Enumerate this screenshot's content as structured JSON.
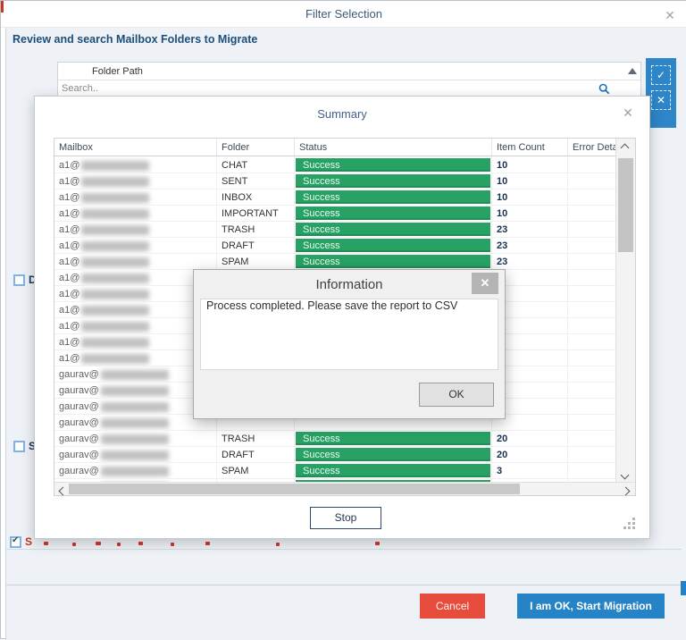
{
  "window": {
    "title": "Filter Selection",
    "close_glyph": "✕"
  },
  "filter": {
    "heading": "Review and search Mailbox Folders to Migrate",
    "folder_table": {
      "header": "Folder Path",
      "search_placeholder": "Search.."
    },
    "side_buttons": {
      "check_all_glyph": "✓",
      "uncheck_all_glyph": "✕"
    },
    "checkboxes": [
      {
        "label": "D",
        "checked": false
      },
      {
        "label": "S",
        "checked": false
      },
      {
        "label": "S",
        "checked": true,
        "label_color": "#c13525"
      }
    ],
    "footer": {
      "cancel_label": "Cancel",
      "migrate_label": "I am OK, Start Migration"
    }
  },
  "summary": {
    "title": "Summary",
    "close_glyph": "✕",
    "stop_label": "Stop",
    "columns": [
      "Mailbox",
      "Folder",
      "Status",
      "Item Count",
      "Error Detail"
    ],
    "rows": [
      {
        "mailbox": "a1@",
        "blurred": true,
        "folder": "CHAT",
        "status": "Success",
        "count": "10"
      },
      {
        "mailbox": "a1@",
        "blurred": true,
        "folder": "SENT",
        "status": "Success",
        "count": "10"
      },
      {
        "mailbox": "a1@",
        "blurred": true,
        "folder": "INBOX",
        "status": "Success",
        "count": "10"
      },
      {
        "mailbox": "a1@",
        "blurred": true,
        "folder": "IMPORTANT",
        "status": "Success",
        "count": "10"
      },
      {
        "mailbox": "a1@",
        "blurred": true,
        "folder": "TRASH",
        "status": "Success",
        "count": "23"
      },
      {
        "mailbox": "a1@",
        "blurred": true,
        "folder": "DRAFT",
        "status": "Success",
        "count": "23"
      },
      {
        "mailbox": "a1@",
        "blurred": true,
        "folder": "SPAM",
        "status": "Success",
        "count": "23"
      },
      {
        "mailbox": "a1@",
        "blurred": true,
        "folder": "",
        "status": "",
        "count": ""
      },
      {
        "mailbox": "a1@",
        "blurred": true,
        "folder": "",
        "status": "",
        "count": ""
      },
      {
        "mailbox": "a1@",
        "blurred": true,
        "folder": "",
        "status": "",
        "count": ""
      },
      {
        "mailbox": "a1@",
        "blurred": true,
        "folder": "",
        "status": "",
        "count": ""
      },
      {
        "mailbox": "a1@",
        "blurred": true,
        "folder": "",
        "status": "",
        "count": ""
      },
      {
        "mailbox": "a1@",
        "blurred": true,
        "folder": "",
        "status": "",
        "count": ""
      },
      {
        "mailbox": "gaurav@",
        "blurred": true,
        "folder": "",
        "status": "",
        "count": ""
      },
      {
        "mailbox": "gaurav@",
        "blurred": true,
        "folder": "",
        "status": "",
        "count": ""
      },
      {
        "mailbox": "gaurav@",
        "blurred": true,
        "folder": "",
        "status": "",
        "count": ""
      },
      {
        "mailbox": "gaurav@",
        "blurred": true,
        "folder": "",
        "status": "",
        "count": ""
      },
      {
        "mailbox": "gaurav@",
        "blurred": true,
        "folder": "TRASH",
        "status": "Success",
        "count": "20"
      },
      {
        "mailbox": "gaurav@",
        "blurred": true,
        "folder": "DRAFT",
        "status": "Success",
        "count": "20"
      },
      {
        "mailbox": "gaurav@",
        "blurred": true,
        "folder": "SPAM",
        "status": "Success",
        "count": "3"
      },
      {
        "mailbox": "gaurav@",
        "blurred": true,
        "folder": "",
        "status": "Success",
        "count": ""
      }
    ]
  },
  "info_dialog": {
    "title": "Information",
    "message": "Process completed. Please save the report to CSV",
    "ok_label": "OK",
    "close_glyph": "✕"
  },
  "colors": {
    "success_green": "#28a264",
    "cancel_red": "#e74c3c",
    "primary_blue": "#2583c6",
    "heading_navy": "#1d4e79"
  }
}
